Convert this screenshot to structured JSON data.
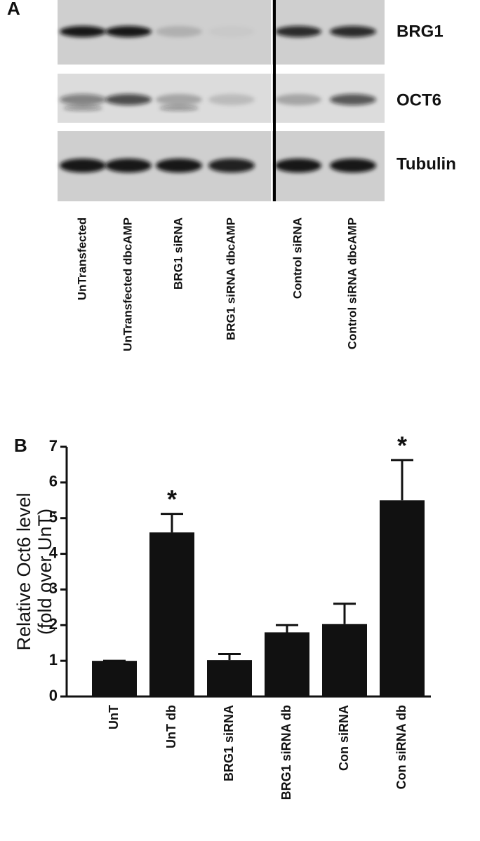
{
  "panel_a": {
    "label": "A",
    "rows": [
      "BRG1",
      "OCT6",
      "Tubulin"
    ],
    "lanes": [
      "UnTransfected",
      "UnTransfected dbcAMP",
      "BRG1 siRNA",
      "BRG1 siRNA dbcAMP",
      "Control siRNA",
      "Control siRNA dbcAMP"
    ]
  },
  "chart_data": {
    "type": "bar",
    "panel_label": "B",
    "y_label": [
      "Relative Oct6 level",
      "(fold over UnT)"
    ],
    "categories": [
      "UnT",
      "UnT db",
      "BRG1 siRNA",
      "BRG1 siRNA db",
      "Con siRNA",
      "Con siRNA db"
    ],
    "values": [
      1.0,
      4.6,
      1.02,
      1.8,
      2.03,
      5.5
    ],
    "errors": [
      0,
      0.52,
      0.17,
      0.2,
      0.57,
      1.13
    ],
    "color": "#111111",
    "annotations": [
      {
        "category": "UnT db",
        "text": "*"
      },
      {
        "category": "Con siRNA db",
        "text": "*"
      }
    ],
    "ylim": [
      0,
      7
    ],
    "yticks": [
      0,
      1,
      2,
      3,
      4,
      5,
      6,
      7
    ]
  }
}
